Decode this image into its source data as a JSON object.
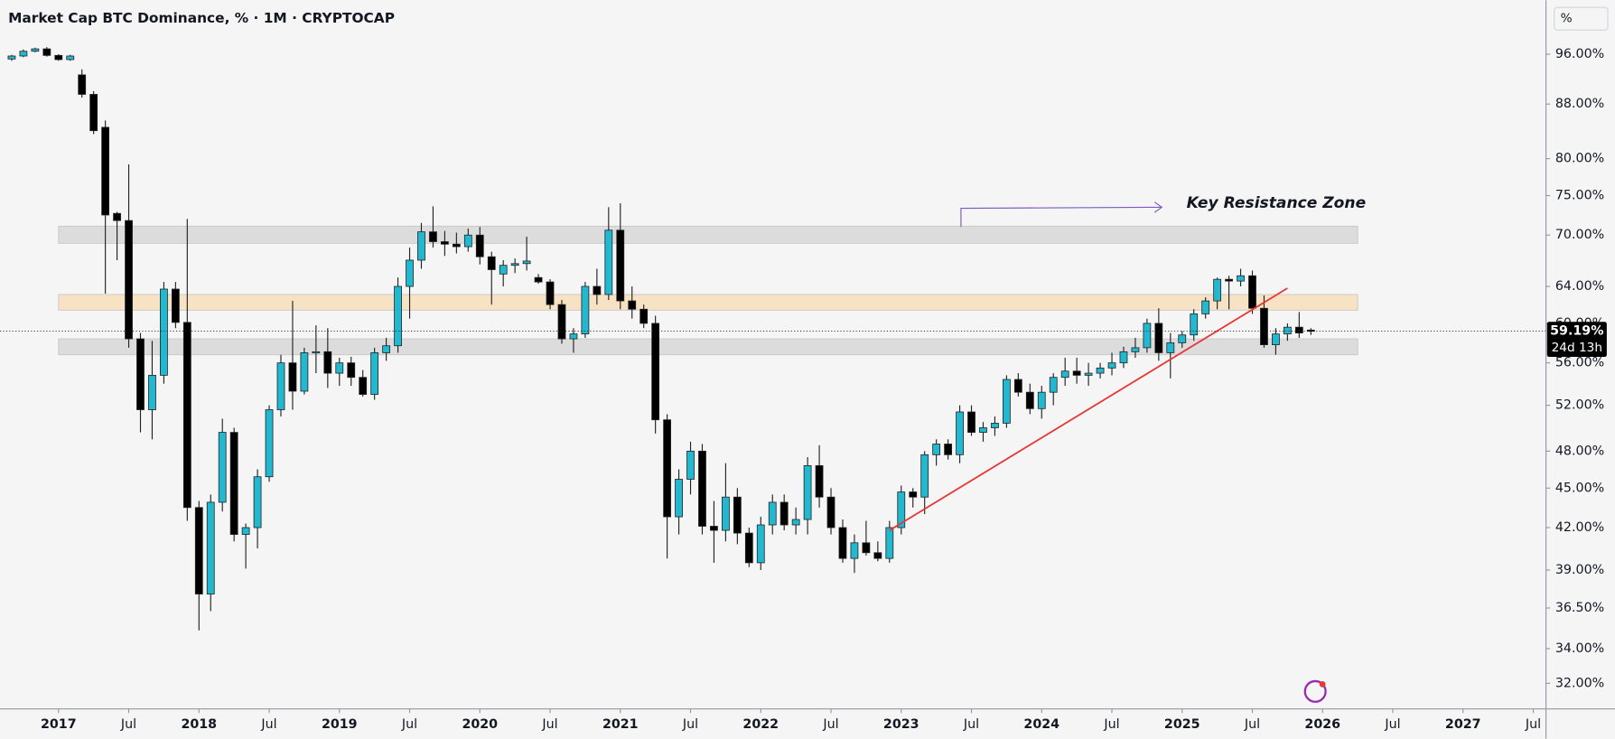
{
  "chart_data": {
    "type": "candlestick",
    "title": "Market Cap BTC Dominance, % · 1M · CRYPTOCAP",
    "axis_unit": "%",
    "log_scale": true,
    "up_color": "#22b8d0",
    "down_color": "#000000",
    "xlim": [
      "2016-08",
      "2027-08"
    ],
    "xticks": [
      {
        "value": "2017-01",
        "label": "2017"
      },
      {
        "value": "2017-07",
        "label": "Jul"
      },
      {
        "value": "2018-01",
        "label": "2018"
      },
      {
        "value": "2018-07",
        "label": "Jul"
      },
      {
        "value": "2019-01",
        "label": "2019"
      },
      {
        "value": "2019-07",
        "label": "Jul"
      },
      {
        "value": "2020-01",
        "label": "2020"
      },
      {
        "value": "2020-07",
        "label": "Jul"
      },
      {
        "value": "2021-01",
        "label": "2021"
      },
      {
        "value": "2021-07",
        "label": "Jul"
      },
      {
        "value": "2022-01",
        "label": "2022"
      },
      {
        "value": "2022-07",
        "label": "Jul"
      },
      {
        "value": "2023-01",
        "label": "2023"
      },
      {
        "value": "2023-07",
        "label": "Jul"
      },
      {
        "value": "2024-01",
        "label": "2024"
      },
      {
        "value": "2024-07",
        "label": "Jul"
      },
      {
        "value": "2025-01",
        "label": "2025"
      },
      {
        "value": "2025-07",
        "label": "Jul"
      },
      {
        "value": "2026-01",
        "label": "2026"
      },
      {
        "value": "2026-07",
        "label": "Jul"
      },
      {
        "value": "2027-01",
        "label": "2027"
      },
      {
        "value": "2027-07",
        "label": "Jul"
      }
    ],
    "ylim": [
      30.6,
      105.5
    ],
    "yticks": [
      {
        "value": 96,
        "label": "96.00%"
      },
      {
        "value": 88,
        "label": "88.00%"
      },
      {
        "value": 80,
        "label": "80.00%"
      },
      {
        "value": 75,
        "label": "75.00%"
      },
      {
        "value": 70,
        "label": "70.00%"
      },
      {
        "value": 64,
        "label": "64.00%"
      },
      {
        "value": 60,
        "label": "60.00%"
      },
      {
        "value": 56,
        "label": "56.00%"
      },
      {
        "value": 52,
        "label": "52.00%"
      },
      {
        "value": 48,
        "label": "48.00%"
      },
      {
        "value": 45,
        "label": "45.00%"
      },
      {
        "value": 42,
        "label": "42.00%"
      },
      {
        "value": 39,
        "label": "39.00%"
      },
      {
        "value": 36.5,
        "label": "36.50%"
      },
      {
        "value": 34,
        "label": "34.00%"
      },
      {
        "value": 32,
        "label": "32.00%"
      }
    ],
    "candles": {
      "x": [
        "2016-09",
        "2016-10",
        "2016-11",
        "2016-12",
        "2017-01",
        "2017-02",
        "2017-03",
        "2017-04",
        "2017-05",
        "2017-06",
        "2017-07",
        "2017-08",
        "2017-09",
        "2017-10",
        "2017-11",
        "2017-12",
        "2018-01",
        "2018-02",
        "2018-03",
        "2018-04",
        "2018-05",
        "2018-06",
        "2018-07",
        "2018-08",
        "2018-09",
        "2018-10",
        "2018-11",
        "2018-12",
        "2019-01",
        "2019-02",
        "2019-03",
        "2019-04",
        "2019-05",
        "2019-06",
        "2019-07",
        "2019-08",
        "2019-09",
        "2019-10",
        "2019-11",
        "2019-12",
        "2020-01",
        "2020-02",
        "2020-03",
        "2020-04",
        "2020-05",
        "2020-06",
        "2020-07",
        "2020-08",
        "2020-09",
        "2020-10",
        "2020-11",
        "2020-12",
        "2021-01",
        "2021-02",
        "2021-03",
        "2021-04",
        "2021-05",
        "2021-06",
        "2021-07",
        "2021-08",
        "2021-09",
        "2021-10",
        "2021-11",
        "2021-12",
        "2022-01",
        "2022-02",
        "2022-03",
        "2022-04",
        "2022-05",
        "2022-06",
        "2022-07",
        "2022-08",
        "2022-09",
        "2022-10",
        "2022-11",
        "2022-12",
        "2023-01",
        "2023-02",
        "2023-03",
        "2023-04",
        "2023-05",
        "2023-06",
        "2023-07",
        "2023-08",
        "2023-09",
        "2023-10",
        "2023-11",
        "2023-12",
        "2024-01",
        "2024-02",
        "2024-03",
        "2024-04",
        "2024-05",
        "2024-06",
        "2024-07",
        "2024-08",
        "2024-09",
        "2024-10",
        "2024-11",
        "2024-12",
        "2025-01",
        "2025-02",
        "2025-03",
        "2025-04",
        "2025-05",
        "2025-06",
        "2025-07",
        "2025-08",
        "2025-09",
        "2025-10",
        "2025-11",
        "2025-12"
      ],
      "open": [
        95.2,
        95.7,
        96.5,
        96.9,
        95.8,
        95.1,
        92.6,
        89.5,
        84.5,
        72.7,
        71.8,
        58.4,
        51.6,
        54.8,
        63.7,
        60.1,
        43.5,
        37.4,
        43.9,
        49.6,
        41.5,
        42.0,
        45.9,
        51.6,
        56.0,
        53.3,
        57.0,
        57.1,
        55.0,
        56.0,
        54.6,
        53.0,
        57.0,
        57.7,
        64.0,
        67.0,
        70.4,
        69.2,
        68.9,
        68.6,
        70.0,
        67.4,
        65.4,
        66.4,
        66.6,
        65.0,
        64.5,
        62.0,
        58.4,
        58.9,
        64.0,
        63.1,
        70.6,
        62.4,
        61.5,
        60.0,
        50.7,
        42.8,
        45.7,
        48.0,
        42.1,
        41.8,
        44.3,
        41.6,
        39.5,
        42.2,
        43.9,
        42.2,
        42.6,
        46.8,
        44.3,
        42.0,
        39.8,
        40.9,
        40.2,
        39.8,
        42.0,
        44.7,
        44.3,
        47.7,
        48.6,
        47.7,
        51.4,
        49.6,
        50.0,
        50.4,
        54.4,
        53.2,
        51.7,
        53.2,
        54.6,
        55.2,
        54.8,
        55.0,
        55.5,
        56.0,
        57.1,
        57.5,
        60.0,
        57.0,
        58.0,
        58.8,
        61.0,
        62.4,
        64.8,
        64.6,
        65.2,
        61.6,
        57.8,
        58.9,
        59.6,
        59.3
      ],
      "high": [
        95.9,
        96.8,
        97.1,
        97.2,
        96.0,
        95.9,
        93.5,
        90.0,
        85.5,
        72.9,
        79.2,
        59.0,
        58.2,
        64.5,
        64.5,
        72.0,
        44.0,
        44.5,
        50.8,
        50.0,
        42.3,
        46.5,
        52.0,
        56.8,
        62.4,
        57.5,
        59.8,
        59.5,
        56.5,
        56.6,
        55.3,
        57.5,
        58.5,
        65.0,
        68.5,
        71.5,
        73.6,
        70.5,
        70.3,
        70.8,
        71.0,
        68.0,
        67.0,
        67.2,
        69.8,
        65.4,
        64.8,
        62.5,
        59.5,
        64.5,
        66.0,
        73.5,
        74.0,
        64.0,
        62.0,
        60.8,
        51.2,
        46.5,
        48.8,
        48.6,
        44.0,
        47.0,
        45.0,
        42.0,
        42.8,
        44.5,
        44.5,
        43.5,
        47.5,
        48.5,
        45.0,
        42.6,
        41.5,
        42.5,
        41.0,
        42.5,
        45.2,
        45.0,
        48.0,
        49.0,
        49.0,
        52.0,
        52.0,
        50.5,
        51.0,
        54.8,
        55.0,
        54.0,
        53.8,
        55.0,
        56.5,
        56.5,
        56.0,
        56.0,
        57.0,
        57.6,
        58.5,
        60.5,
        61.6,
        59.0,
        59.2,
        61.5,
        62.8,
        65.0,
        65.2,
        66.0,
        65.8,
        63.0,
        59.5,
        60.0,
        61.2,
        59.5
      ],
      "low": [
        94.9,
        95.5,
        96.3,
        95.6,
        94.9,
        94.9,
        89.0,
        83.5,
        63.2,
        67.0,
        57.5,
        49.6,
        49.0,
        54.0,
        59.5,
        42.5,
        35.1,
        36.3,
        43.2,
        41.0,
        39.1,
        40.5,
        45.5,
        51.0,
        51.6,
        53.0,
        55.0,
        53.6,
        53.8,
        53.8,
        52.8,
        52.5,
        56.2,
        57.0,
        60.5,
        66.0,
        68.5,
        67.5,
        67.8,
        68.0,
        66.5,
        62.0,
        64.0,
        65.5,
        65.8,
        64.3,
        61.5,
        57.9,
        57.0,
        58.5,
        62.0,
        62.5,
        61.5,
        60.5,
        59.5,
        49.5,
        39.8,
        41.5,
        44.5,
        41.5,
        39.5,
        41.0,
        40.8,
        39.2,
        39.0,
        41.5,
        41.8,
        41.5,
        41.5,
        43.5,
        41.5,
        39.5,
        38.8,
        40.0,
        39.6,
        39.5,
        41.5,
        43.5,
        43.0,
        46.8,
        47.3,
        47.0,
        49.3,
        48.8,
        49.3,
        50.0,
        52.8,
        51.2,
        50.8,
        52.0,
        53.8,
        54.0,
        53.8,
        54.5,
        54.8,
        55.5,
        56.5,
        57.0,
        56.2,
        54.5,
        57.5,
        58.2,
        60.5,
        61.5,
        61.5,
        64.0,
        61.0,
        57.5,
        56.8,
        58.2,
        58.5,
        58.8
      ],
      "close": [
        95.7,
        96.5,
        96.9,
        95.8,
        95.1,
        95.7,
        89.5,
        84.0,
        72.5,
        71.8,
        58.4,
        51.6,
        54.8,
        63.7,
        60.1,
        43.5,
        37.4,
        43.9,
        49.6,
        41.5,
        42.0,
        45.9,
        51.6,
        56.0,
        53.3,
        57.0,
        57.1,
        55.0,
        56.0,
        54.6,
        53.0,
        57.0,
        57.7,
        64.0,
        67.0,
        70.4,
        69.2,
        68.9,
        68.6,
        70.0,
        67.4,
        65.9,
        66.4,
        66.6,
        66.9,
        64.5,
        62.0,
        58.4,
        58.9,
        64.0,
        63.1,
        70.6,
        62.4,
        61.5,
        60.0,
        50.7,
        42.8,
        45.7,
        48.0,
        42.1,
        41.8,
        44.3,
        41.6,
        39.5,
        42.2,
        43.9,
        42.2,
        42.6,
        46.8,
        44.3,
        42.0,
        39.8,
        40.9,
        40.2,
        39.8,
        42.0,
        44.7,
        44.3,
        47.7,
        48.6,
        47.7,
        51.4,
        49.6,
        50.0,
        50.4,
        54.4,
        53.2,
        51.7,
        53.2,
        54.6,
        55.2,
        54.8,
        55.0,
        55.5,
        56.0,
        57.1,
        57.5,
        60.0,
        57.0,
        58.0,
        58.8,
        61.0,
        62.4,
        64.8,
        64.6,
        65.2,
        61.6,
        57.8,
        58.9,
        59.6,
        59.0,
        59.19
      ]
    },
    "zones": [
      {
        "x": [
          "2017-01",
          "2026-04"
        ],
        "low": 69.0,
        "high": 71.1,
        "color": "#dcdcdc"
      },
      {
        "x": [
          "2017-01",
          "2026-04"
        ],
        "low": 61.4,
        "high": 63.1,
        "color": "#f8e2c4"
      },
      {
        "x": [
          "2017-01",
          "2026-04"
        ],
        "low": 56.8,
        "high": 58.4,
        "color": "#dcdcdc"
      }
    ],
    "trendline": {
      "x": [
        "2022-12",
        "2025-10"
      ],
      "values": [
        41.8,
        63.8
      ],
      "color": "#e53935"
    },
    "annotation": "Key Resistance Zone",
    "last_price": {
      "value": 59.19,
      "label": "59.19%"
    },
    "countdown": "24d 13h"
  }
}
